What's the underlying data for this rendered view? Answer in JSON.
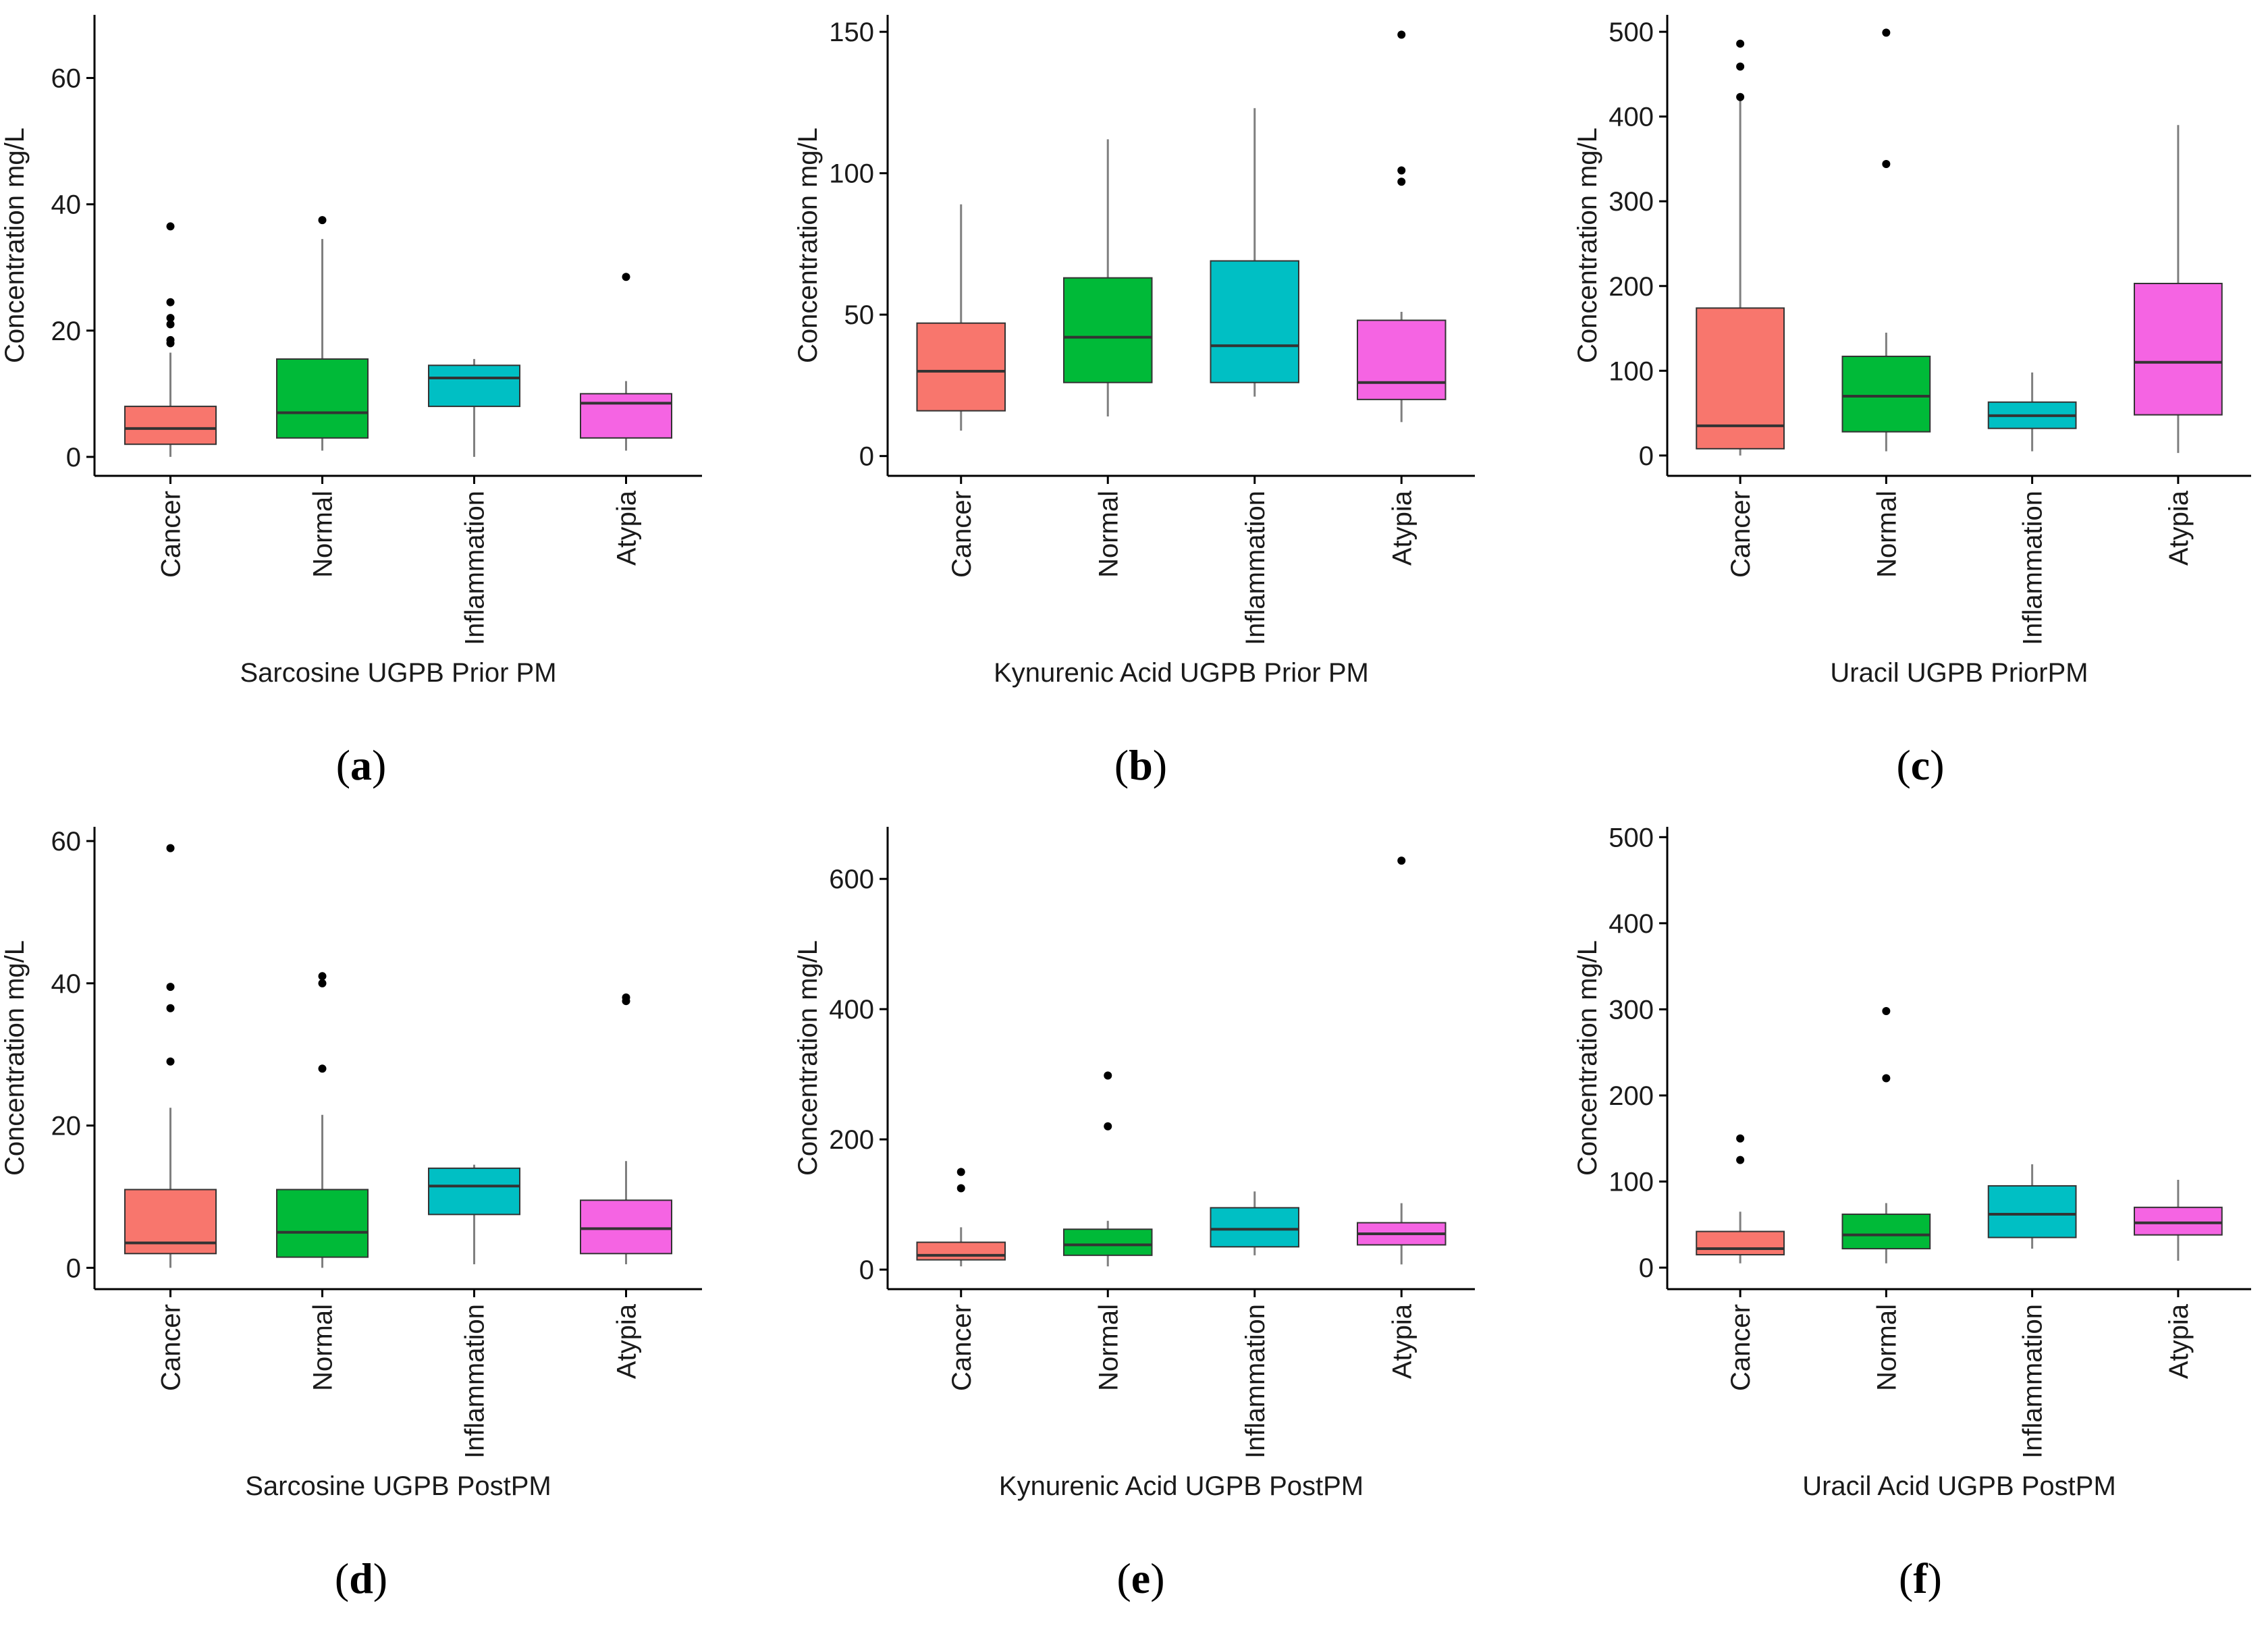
{
  "ylabel": "Concentration mg/L",
  "colors": {
    "Cancer": "#F8766D",
    "Normal": "#00BA38",
    "Inflammation": "#00BFC4",
    "Atypia": "#F564E3",
    "axis": "#000000",
    "whisker": "#7f7f7f",
    "median": "#333333"
  },
  "chart_data": [
    {
      "type": "box",
      "panel_label": "a",
      "title": "Sarcosine UGPB Prior PM",
      "xlabel": "Sarcosine UGPB Prior PM",
      "ylabel": "Concentration mg/L",
      "categories": [
        "Cancer",
        "Normal",
        "Inflammation",
        "Atypia"
      ],
      "ylim": [
        -3,
        70
      ],
      "yticks": [
        0,
        20,
        40,
        60
      ],
      "boxes": [
        {
          "name": "Cancer",
          "min": 0,
          "q1": 2,
          "median": 4.5,
          "q3": 8,
          "max": 16.5,
          "outliers": [
            18,
            18.5,
            21,
            22,
            24.5,
            36.5
          ]
        },
        {
          "name": "Normal",
          "min": 1,
          "q1": 3,
          "median": 7,
          "q3": 15.5,
          "max": 34.5,
          "outliers": [
            37.5
          ]
        },
        {
          "name": "Inflammation",
          "min": 0,
          "q1": 8,
          "median": 12.5,
          "q3": 14.5,
          "max": 15.5,
          "outliers": []
        },
        {
          "name": "Atypia",
          "min": 1,
          "q1": 3,
          "median": 8.5,
          "q3": 10,
          "max": 12,
          "outliers": [
            28.5
          ]
        }
      ]
    },
    {
      "type": "box",
      "panel_label": "b",
      "title": "Kynurenic Acid UGPB Prior PM",
      "xlabel": "Kynurenic Acid UGPB Prior PM",
      "ylabel": "Concentration mg/L",
      "categories": [
        "Cancer",
        "Normal",
        "Inflammation",
        "Atypia"
      ],
      "ylim": [
        -7,
        156
      ],
      "yticks": [
        0,
        50,
        100,
        150
      ],
      "boxes": [
        {
          "name": "Cancer",
          "min": 9,
          "q1": 16,
          "median": 30,
          "q3": 47,
          "max": 89,
          "outliers": []
        },
        {
          "name": "Normal",
          "min": 14,
          "q1": 26,
          "median": 42,
          "q3": 63,
          "max": 112,
          "outliers": []
        },
        {
          "name": "Inflammation",
          "min": 21,
          "q1": 26,
          "median": 39,
          "q3": 69,
          "max": 123,
          "outliers": []
        },
        {
          "name": "Atypia",
          "min": 12,
          "q1": 20,
          "median": 26,
          "q3": 48,
          "max": 51,
          "outliers": [
            97,
            101,
            149
          ]
        }
      ]
    },
    {
      "type": "box",
      "panel_label": "c",
      "title": "Uracil UGPB PriorPM",
      "xlabel": "Uracil UGPB PriorPM",
      "ylabel": "Concentration mg/L",
      "categories": [
        "Cancer",
        "Normal",
        "Inflammation",
        "Atypia"
      ],
      "ylim": [
        -24,
        520
      ],
      "yticks": [
        0,
        100,
        200,
        300,
        400,
        500
      ],
      "boxes": [
        {
          "name": "Cancer",
          "min": 0,
          "q1": 8,
          "median": 35,
          "q3": 174,
          "max": 420,
          "outliers": [
            423,
            459,
            486
          ]
        },
        {
          "name": "Normal",
          "min": 5,
          "q1": 28,
          "median": 70,
          "q3": 117,
          "max": 145,
          "outliers": [
            344,
            499
          ]
        },
        {
          "name": "Inflammation",
          "min": 5,
          "q1": 32,
          "median": 47,
          "q3": 63,
          "max": 98,
          "outliers": []
        },
        {
          "name": "Atypia",
          "min": 3,
          "q1": 48,
          "median": 110,
          "q3": 203,
          "max": 390,
          "outliers": []
        }
      ]
    },
    {
      "type": "box",
      "panel_label": "d",
      "title": "Sarcosine UGPB PostPM",
      "xlabel": "Sarcosine UGPB PostPM",
      "ylabel": "Concentration mg/L",
      "categories": [
        "Cancer",
        "Normal",
        "Inflammation",
        "Atypia"
      ],
      "ylim": [
        -3,
        62
      ],
      "yticks": [
        0,
        20,
        40,
        60
      ],
      "boxes": [
        {
          "name": "Cancer",
          "min": 0,
          "q1": 2,
          "median": 3.5,
          "q3": 11,
          "max": 22.5,
          "outliers": [
            29,
            36.5,
            39.5,
            59
          ]
        },
        {
          "name": "Normal",
          "min": 0,
          "q1": 1.5,
          "median": 5,
          "q3": 11,
          "max": 21.5,
          "outliers": [
            28,
            40,
            41
          ]
        },
        {
          "name": "Inflammation",
          "min": 0.5,
          "q1": 7.5,
          "median": 11.5,
          "q3": 14,
          "max": 14.5,
          "outliers": []
        },
        {
          "name": "Atypia",
          "min": 0.5,
          "q1": 2,
          "median": 5.5,
          "q3": 9.5,
          "max": 15,
          "outliers": [
            37.5,
            38
          ]
        }
      ]
    },
    {
      "type": "box",
      "panel_label": "e",
      "title": "Kynurenic Acid UGPB PostPM",
      "xlabel": "Kynurenic Acid UGPB PostPM",
      "ylabel": "Concentration mg/L",
      "categories": [
        "Cancer",
        "Normal",
        "Inflammation",
        "Atypia"
      ],
      "ylim": [
        -30,
        680
      ],
      "yticks": [
        0,
        200,
        400,
        600
      ],
      "boxes": [
        {
          "name": "Cancer",
          "min": 5,
          "q1": 15,
          "median": 22,
          "q3": 42,
          "max": 65,
          "outliers": [
            125,
            150
          ]
        },
        {
          "name": "Normal",
          "min": 5,
          "q1": 22,
          "median": 38,
          "q3": 62,
          "max": 75,
          "outliers": [
            220,
            298
          ]
        },
        {
          "name": "Inflammation",
          "min": 22,
          "q1": 35,
          "median": 62,
          "q3": 95,
          "max": 120,
          "outliers": []
        },
        {
          "name": "Atypia",
          "min": 8,
          "q1": 38,
          "median": 55,
          "q3": 72,
          "max": 102,
          "outliers": [
            628
          ]
        }
      ]
    },
    {
      "type": "box",
      "panel_label": "f",
      "title": "Uracil Acid UGPB PostPM",
      "xlabel": "Uracil Acid UGPB PostPM",
      "ylabel": "Concentration mg/L",
      "categories": [
        "Cancer",
        "Normal",
        "Inflammation",
        "Atypia"
      ],
      "ylim": [
        -25,
        512
      ],
      "yticks": [
        0,
        100,
        200,
        300,
        400,
        500
      ],
      "boxes": [
        {
          "name": "Cancer",
          "min": 5,
          "q1": 15,
          "median": 22,
          "q3": 42,
          "max": 65,
          "outliers": [
            125,
            150
          ]
        },
        {
          "name": "Normal",
          "min": 5,
          "q1": 22,
          "median": 38,
          "q3": 62,
          "max": 75,
          "outliers": [
            220,
            298
          ]
        },
        {
          "name": "Inflammation",
          "min": 22,
          "q1": 35,
          "median": 62,
          "q3": 95,
          "max": 120,
          "outliers": []
        },
        {
          "name": "Atypia",
          "min": 8,
          "q1": 38,
          "median": 52,
          "q3": 70,
          "max": 102,
          "outliers": []
        }
      ]
    }
  ]
}
